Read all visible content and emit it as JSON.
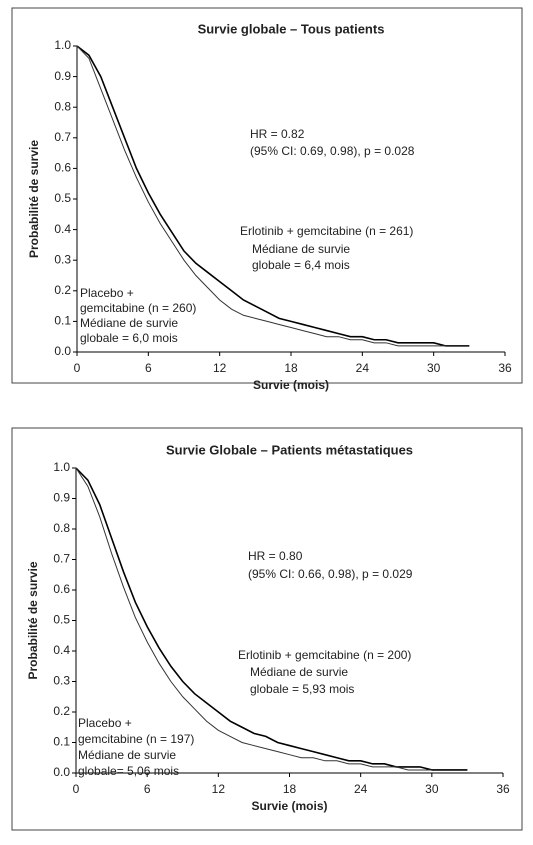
{
  "chart_data": [
    {
      "type": "line",
      "title": "Survie globale – Tous patients",
      "xlabel": "Survie (mois)",
      "ylabel": "Probabilité de survie",
      "x": [
        0,
        1,
        2,
        3,
        4,
        5,
        6,
        7,
        8,
        9,
        10,
        11,
        12,
        13,
        14,
        15,
        16,
        17,
        18,
        19,
        20,
        21,
        22,
        23,
        24,
        25,
        26,
        27,
        28,
        29,
        30,
        31,
        32,
        33
      ],
      "series": [
        {
          "name": "Erlotinib + gemcitabine (n = 261)",
          "color": "#000000",
          "values": [
            1.0,
            0.97,
            0.9,
            0.8,
            0.7,
            0.6,
            0.52,
            0.45,
            0.39,
            0.33,
            0.29,
            0.26,
            0.23,
            0.2,
            0.17,
            0.15,
            0.13,
            0.11,
            0.1,
            0.09,
            0.08,
            0.07,
            0.06,
            0.05,
            0.05,
            0.04,
            0.04,
            0.03,
            0.03,
            0.03,
            0.03,
            0.02,
            0.02,
            0.02
          ]
        },
        {
          "name": "Placebo + gemcitabine (n = 260)",
          "color": "#333333",
          "values": [
            1.0,
            0.96,
            0.86,
            0.76,
            0.66,
            0.57,
            0.49,
            0.42,
            0.36,
            0.3,
            0.25,
            0.21,
            0.17,
            0.14,
            0.12,
            0.11,
            0.1,
            0.09,
            0.08,
            0.07,
            0.06,
            0.05,
            0.05,
            0.04,
            0.04,
            0.03,
            0.03,
            0.02,
            0.02,
            0.02,
            0.02,
            0.02,
            null,
            null
          ]
        }
      ],
      "annotations": [
        "HR = 0.82",
        "(95% CI: 0.69, 0.98), p = 0.028",
        "Erlotinib  + gemcitabine (n = 261)",
        "Médiane de survie",
        "globale = 6,4 mois",
        "Placebo +",
        "gemcitabine (n = 260)",
        "Médiane de survie",
        "globale = 6,0 mois"
      ],
      "xlim": [
        0,
        36
      ],
      "xticks": [
        0,
        6,
        12,
        18,
        24,
        30,
        36
      ],
      "ylim": [
        0,
        1
      ],
      "yticks": [
        {
          "value": 0,
          "label": "0.0"
        },
        0.1,
        0.2,
        0.3,
        0.4,
        0.5,
        0.6,
        0.7,
        0.8,
        0.9,
        {
          "value": 1,
          "label": "1.0"
        }
      ]
    },
    {
      "type": "line",
      "title": "Survie Globale – Patients métastatiques",
      "xlabel": "Survie (mois)",
      "ylabel": "Probabilité de survie",
      "x": [
        0,
        1,
        2,
        3,
        4,
        5,
        6,
        7,
        8,
        9,
        10,
        11,
        12,
        13,
        14,
        15,
        16,
        17,
        18,
        19,
        20,
        21,
        22,
        23,
        24,
        25,
        26,
        27,
        28,
        29,
        30,
        31,
        32,
        33
      ],
      "series": [
        {
          "name": "Erlotinib + gemcitabine (n = 200)",
          "color": "#000000",
          "values": [
            1.0,
            0.96,
            0.88,
            0.77,
            0.66,
            0.56,
            0.48,
            0.41,
            0.35,
            0.3,
            0.26,
            0.23,
            0.2,
            0.17,
            0.15,
            0.13,
            0.12,
            0.1,
            0.09,
            0.08,
            0.07,
            0.06,
            0.05,
            0.04,
            0.04,
            0.03,
            0.03,
            0.02,
            0.02,
            0.02,
            0.01,
            0.01,
            0.01,
            0.01
          ]
        },
        {
          "name": "Placebo + gemcitabine (n = 197)",
          "color": "#333333",
          "values": [
            1.0,
            0.94,
            0.84,
            0.72,
            0.61,
            0.51,
            0.43,
            0.36,
            0.3,
            0.25,
            0.21,
            0.17,
            0.14,
            0.12,
            0.1,
            0.09,
            0.08,
            0.07,
            0.06,
            0.05,
            0.05,
            0.04,
            0.04,
            0.03,
            0.03,
            0.02,
            0.02,
            0.02,
            0.01,
            0.01,
            0.01,
            null,
            null,
            null
          ]
        }
      ],
      "annotations": [
        "HR = 0.80",
        "(95% CI: 0.66, 0.98), p = 0.029",
        "Erlotinib  + gemcitabine (n = 200)",
        "Médiane de survie",
        "globale = 5,93 mois",
        "Placebo +",
        "gemcitabine (n = 197)",
        "Médiane de survie",
        "globale= 5,06 mois"
      ],
      "xlim": [
        0,
        36
      ],
      "xticks": [
        0,
        6,
        12,
        18,
        24,
        30,
        36
      ],
      "ylim": [
        0,
        1
      ],
      "yticks": [
        {
          "value": 0,
          "label": "0.0"
        },
        0.1,
        0.2,
        0.3,
        0.4,
        0.5,
        0.6,
        0.7,
        0.8,
        0.9,
        {
          "value": 1,
          "label": "1.0"
        }
      ]
    }
  ]
}
